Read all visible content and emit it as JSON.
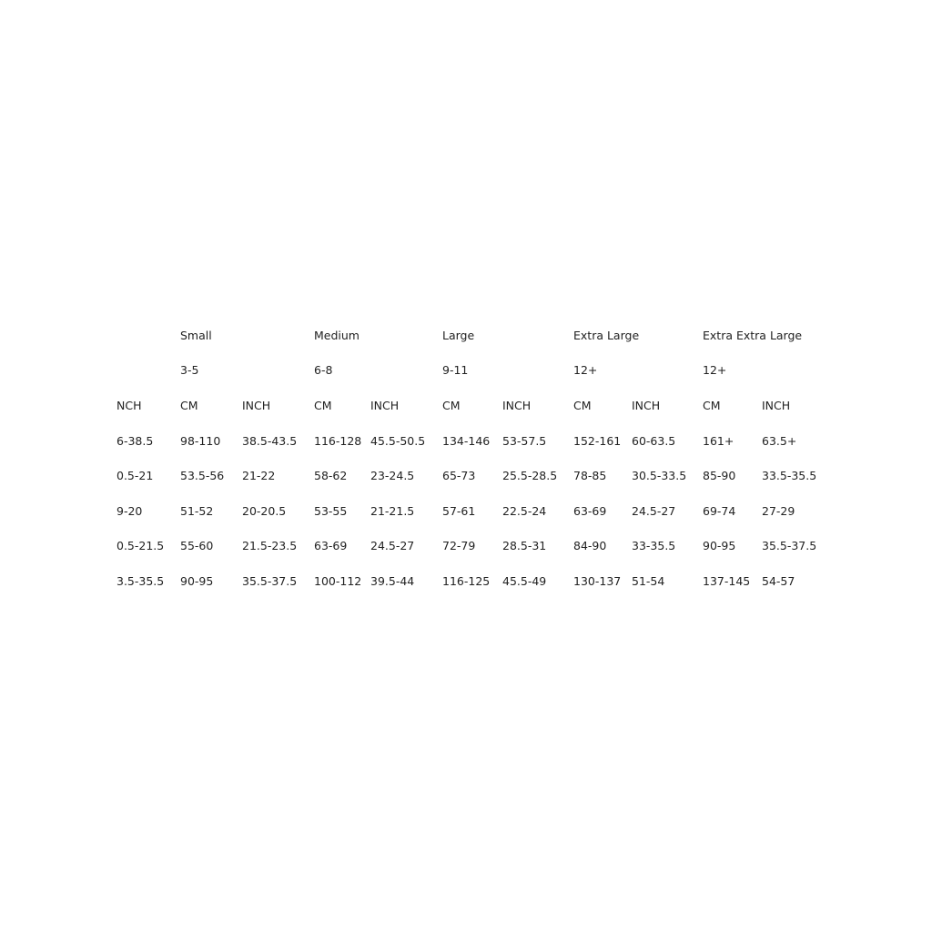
{
  "size_table": {
    "sizes": [
      {
        "label": "Small",
        "age": "3-5"
      },
      {
        "label": "Medium",
        "age": "6-8"
      },
      {
        "label": "Large",
        "age": "9-11"
      },
      {
        "label": "Extra Large",
        "age": "12+"
      },
      {
        "label": "Extra Extra Large",
        "age": "12+"
      }
    ],
    "unit_headers": [
      "NCH",
      "CM",
      "INCH",
      "CM",
      "INCH",
      "CM",
      "INCH",
      "CM",
      "INCH",
      "CM",
      "INCH"
    ],
    "rows": [
      [
        "6-38.5",
        "98-110",
        "38.5-43.5",
        "116-128",
        "45.5-50.5",
        "134-146",
        "53-57.5",
        "152-161",
        "60-63.5",
        "161+",
        "63.5+"
      ],
      [
        "0.5-21",
        "53.5-56",
        "21-22",
        "58-62",
        "23-24.5",
        "65-73",
        "25.5-28.5",
        "78-85",
        "30.5-33.5",
        "85-90",
        "33.5-35.5"
      ],
      [
        "9-20",
        "51-52",
        "20-20.5",
        "53-55",
        "21-21.5",
        "57-61",
        "22.5-24",
        "63-69",
        "24.5-27",
        "69-74",
        "27-29"
      ],
      [
        "0.5-21.5",
        "55-60",
        "21.5-23.5",
        "63-69",
        "24.5-27",
        "72-79",
        "28.5-31",
        "84-90",
        "33-35.5",
        "90-95",
        "35.5-37.5"
      ],
      [
        "3.5-35.5",
        "90-95",
        "35.5-37.5",
        "100-112",
        "39.5-44",
        "116-125",
        "45.5-49",
        "130-137",
        "51-54",
        "137-145",
        "54-57"
      ]
    ]
  }
}
